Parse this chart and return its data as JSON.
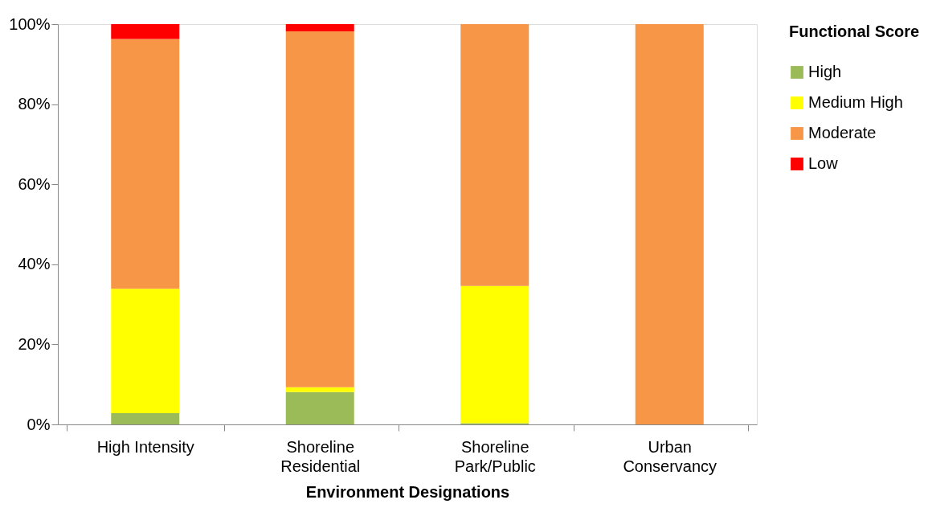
{
  "chart_data": {
    "type": "bar",
    "stacked": true,
    "xlabel": "Environment Designations",
    "legend_title": "Functional Score",
    "legend": "right",
    "grid": false,
    "categories": [
      "High Intensity",
      "Shoreline Residential",
      "Shoreline Park/Public",
      "Urban Conservancy"
    ],
    "series": [
      {
        "name": "High",
        "color": "#9bbb59",
        "values": [
          2.8,
          8.1,
          0.3,
          0
        ]
      },
      {
        "name": "Medium High",
        "color": "#ffff00",
        "values": [
          31.1,
          1.2,
          34.3,
          0
        ]
      },
      {
        "name": "Moderate",
        "color": "#f79646",
        "values": [
          62.4,
          88.9,
          65.4,
          100
        ]
      },
      {
        "name": "Low",
        "color": "#ff0000",
        "values": [
          3.7,
          1.8,
          0,
          0
        ]
      }
    ],
    "ylim": [
      0,
      100
    ],
    "yticks": [
      {
        "value": 0,
        "label": "0%"
      },
      {
        "value": 20,
        "label": "20%"
      },
      {
        "value": 40,
        "label": "40%"
      },
      {
        "value": 60,
        "label": "60%"
      },
      {
        "value": 80,
        "label": "80%"
      },
      {
        "value": 100,
        "label": "100%"
      }
    ]
  }
}
